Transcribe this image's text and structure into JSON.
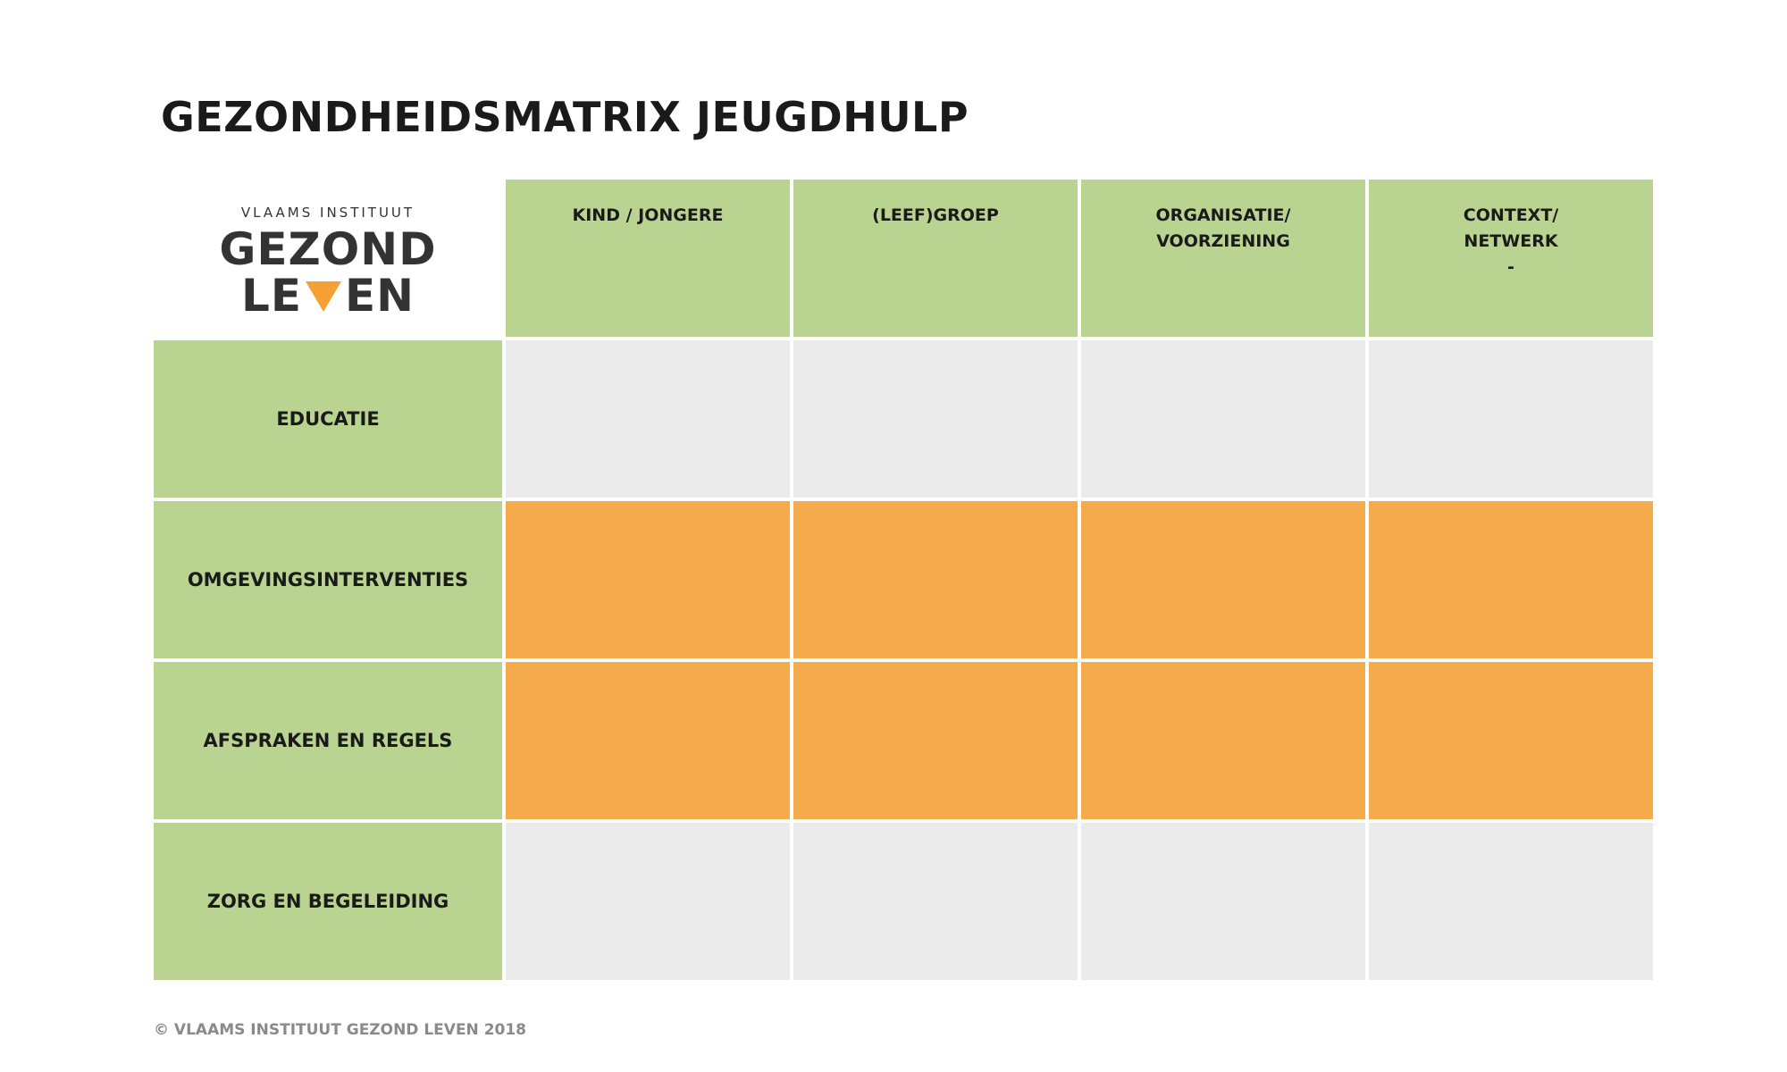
{
  "title": "GEZONDHEIDSMATRIX JEUGDHULP",
  "logo": {
    "top": "VLAAMS INSTITUUT",
    "line1": "GEZOND",
    "line2_left": "LE",
    "line2_right": "EN"
  },
  "columns": [
    {
      "lines": [
        "KIND / JONGERE"
      ]
    },
    {
      "lines": [
        "(LEEF)GROEP"
      ]
    },
    {
      "lines": [
        "ORGANISATIE/",
        "VOORZIENING"
      ]
    },
    {
      "lines": [
        "CONTEXT/",
        "NETWERK",
        "-"
      ]
    }
  ],
  "rows": [
    {
      "label": "EDUCATIE",
      "color": "#ebebeb"
    },
    {
      "label": "OMGEVINGSINTERVENTIES",
      "color": "#f5ab4b"
    },
    {
      "label": "AFSPRAKEN EN REGELS",
      "color": "#f5ab4b"
    },
    {
      "label": "ZORG EN BEGELEIDING",
      "color": "#ebebeb"
    }
  ],
  "footer": "© VLAAMS INSTITUUT GEZOND LEVEN 2018"
}
